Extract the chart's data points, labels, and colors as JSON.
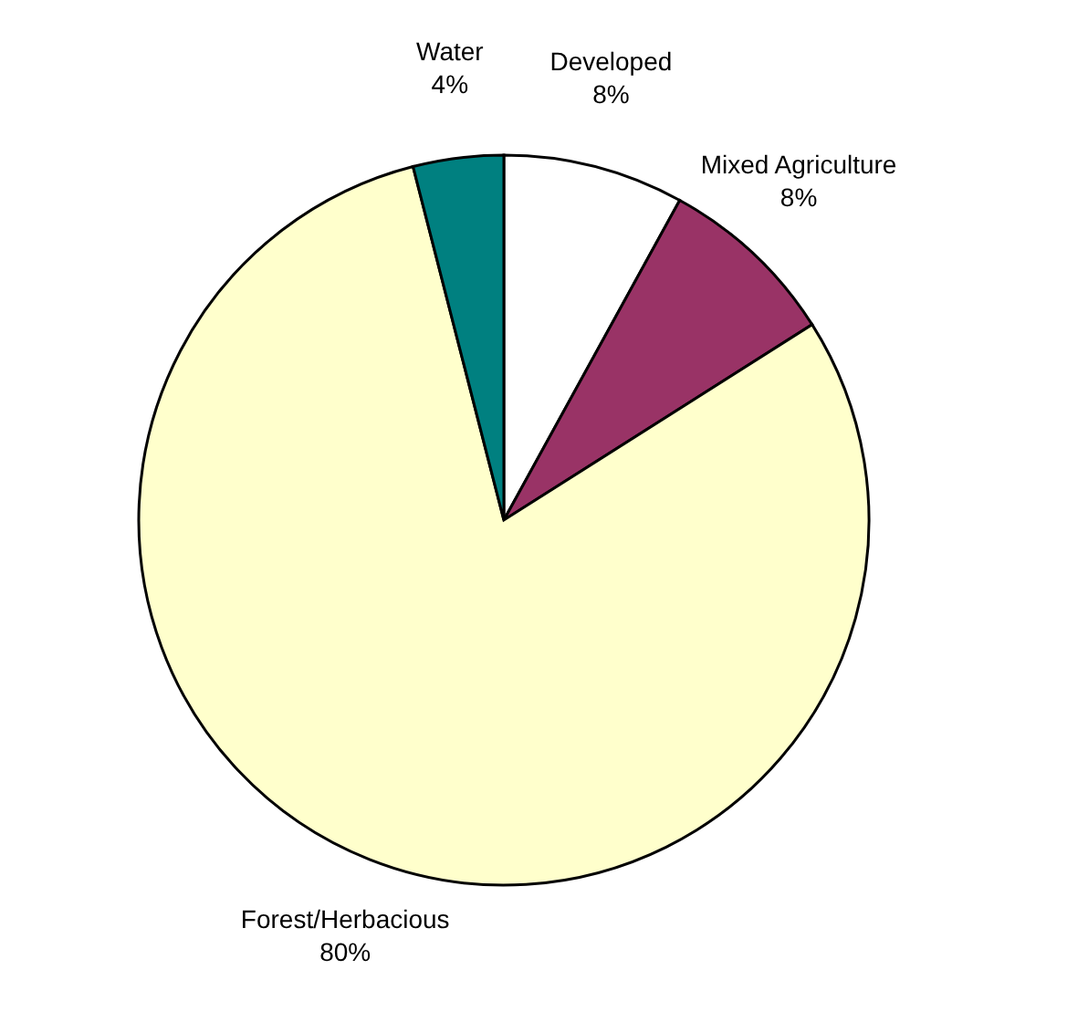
{
  "chart_data": {
    "type": "pie",
    "categories": [
      "Developed",
      "Mixed Agriculture",
      "Forest/Herbacious",
      "Water"
    ],
    "values": [
      8,
      8,
      80,
      4
    ],
    "colors": [
      "#ffffff",
      "#993366",
      "#ffffcc",
      "#008080"
    ],
    "value_labels": [
      "8%",
      "8%",
      "80%",
      "4%"
    ]
  }
}
